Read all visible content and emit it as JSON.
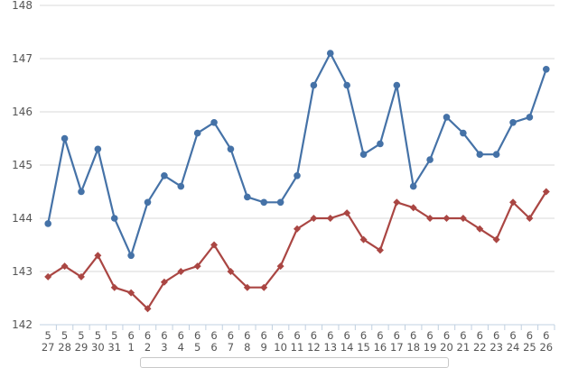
{
  "chart_data": {
    "type": "line",
    "categories": [
      [
        "5",
        "27"
      ],
      [
        "5",
        "28"
      ],
      [
        "5",
        "29"
      ],
      [
        "5",
        "30"
      ],
      [
        "5",
        "31"
      ],
      [
        "6",
        "1"
      ],
      [
        "6",
        "2"
      ],
      [
        "6",
        "3"
      ],
      [
        "6",
        "4"
      ],
      [
        "6",
        "5"
      ],
      [
        "6",
        "6"
      ],
      [
        "6",
        "7"
      ],
      [
        "6",
        "8"
      ],
      [
        "6",
        "9"
      ],
      [
        "6",
        "10"
      ],
      [
        "6",
        "11"
      ],
      [
        "6",
        "12"
      ],
      [
        "6",
        "13"
      ],
      [
        "6",
        "14"
      ],
      [
        "6",
        "15"
      ],
      [
        "6",
        "16"
      ],
      [
        "6",
        "17"
      ],
      [
        "6",
        "18"
      ],
      [
        "6",
        "19"
      ],
      [
        "6",
        "20"
      ],
      [
        "6",
        "21"
      ],
      [
        "6",
        "22"
      ],
      [
        "6",
        "23"
      ],
      [
        "6",
        "24"
      ],
      [
        "6",
        "25"
      ],
      [
        "6",
        "26"
      ]
    ],
    "ylim": [
      142,
      148
    ],
    "yticks": [
      "142",
      "143",
      "144",
      "145",
      "146",
      "147",
      "148"
    ],
    "grid": true,
    "series": [
      {
        "color": "#4572a7",
        "marker": "circle",
        "values": [
          143.9,
          145.5,
          144.5,
          145.3,
          144.0,
          143.3,
          144.3,
          144.8,
          144.6,
          145.6,
          145.8,
          145.3,
          144.4,
          144.3,
          144.3,
          144.8,
          146.5,
          147.1,
          146.5,
          145.2,
          145.4,
          146.5,
          144.6,
          145.1,
          145.9,
          145.6,
          145.2,
          145.2,
          145.8,
          145.9,
          146.8
        ]
      },
      {
        "color": "#aa4643",
        "marker": "diamond",
        "values": [
          142.9,
          143.1,
          142.9,
          143.3,
          142.7,
          142.6,
          142.3,
          142.8,
          143.0,
          143.1,
          143.5,
          143.0,
          142.7,
          142.7,
          143.1,
          143.8,
          144.0,
          144.0,
          144.1,
          143.6,
          143.4,
          144.3,
          144.2,
          144.0,
          144.0,
          144.0,
          143.8,
          143.6,
          144.3,
          144.0,
          144.5
        ]
      }
    ]
  }
}
